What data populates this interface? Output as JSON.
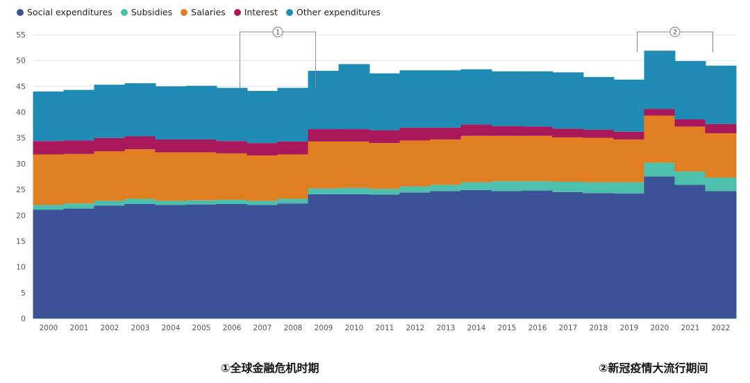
{
  "chart_data": {
    "type": "bar",
    "stacked": true,
    "categories": [
      "2000",
      "2001",
      "2002",
      "2003",
      "2004",
      "2005",
      "2006",
      "2007",
      "2008",
      "2009",
      "2010",
      "2011",
      "2012",
      "2013",
      "2014",
      "2015",
      "2016",
      "2017",
      "2018",
      "2019",
      "2020",
      "2021",
      "2022"
    ],
    "series": [
      {
        "name": "Social expenditures",
        "color": "#3b5396",
        "values": [
          21.1,
          21.3,
          21.9,
          22.2,
          22.0,
          22.1,
          22.2,
          22.0,
          22.3,
          24.1,
          24.1,
          24.0,
          24.4,
          24.7,
          24.9,
          24.7,
          24.8,
          24.5,
          24.3,
          24.2,
          27.5,
          25.9,
          24.7
        ]
      },
      {
        "name": "Subsidies",
        "color": "#4dbfad",
        "values": [
          0.9,
          1.0,
          0.9,
          1.0,
          0.8,
          0.8,
          0.8,
          0.8,
          0.9,
          1.1,
          1.2,
          1.1,
          1.2,
          1.2,
          1.5,
          1.9,
          1.8,
          2.0,
          2.1,
          2.2,
          2.7,
          2.6,
          2.6
        ]
      },
      {
        "name": "Salaries",
        "color": "#e07f22",
        "values": [
          9.8,
          9.6,
          9.6,
          9.6,
          9.4,
          9.3,
          9.0,
          8.8,
          8.6,
          9.1,
          9.0,
          8.9,
          8.9,
          8.8,
          9.0,
          8.8,
          8.8,
          8.6,
          8.6,
          8.3,
          9.1,
          8.7,
          8.6
        ]
      },
      {
        "name": "Interest",
        "color": "#a8185a",
        "values": [
          2.6,
          2.6,
          2.6,
          2.5,
          2.5,
          2.5,
          2.4,
          2.4,
          2.5,
          2.4,
          2.4,
          2.5,
          2.5,
          2.3,
          2.2,
          1.9,
          1.8,
          1.7,
          1.6,
          1.5,
          1.3,
          1.4,
          1.8
        ]
      },
      {
        "name": "Other expenditures",
        "color": "#1f8ab4",
        "values": [
          9.6,
          9.8,
          10.3,
          10.3,
          10.3,
          10.4,
          10.3,
          10.1,
          10.4,
          11.3,
          12.6,
          11.0,
          11.1,
          11.1,
          10.7,
          10.6,
          10.7,
          10.9,
          10.2,
          10.1,
          11.3,
          11.3,
          11.3
        ]
      }
    ],
    "ylim": [
      0,
      55
    ],
    "yticks": [
      0,
      5,
      10,
      15,
      20,
      25,
      30,
      35,
      40,
      45,
      50,
      55
    ],
    "grid": true,
    "legend": "top-left",
    "annotations": [
      {
        "label": "1",
        "from": "2007",
        "to": "2008"
      },
      {
        "label": "2",
        "from": "2020",
        "to": "2021"
      }
    ]
  },
  "captions": {
    "first": "①全球金融危机时期",
    "second": "②新冠疫情大流行期间"
  }
}
